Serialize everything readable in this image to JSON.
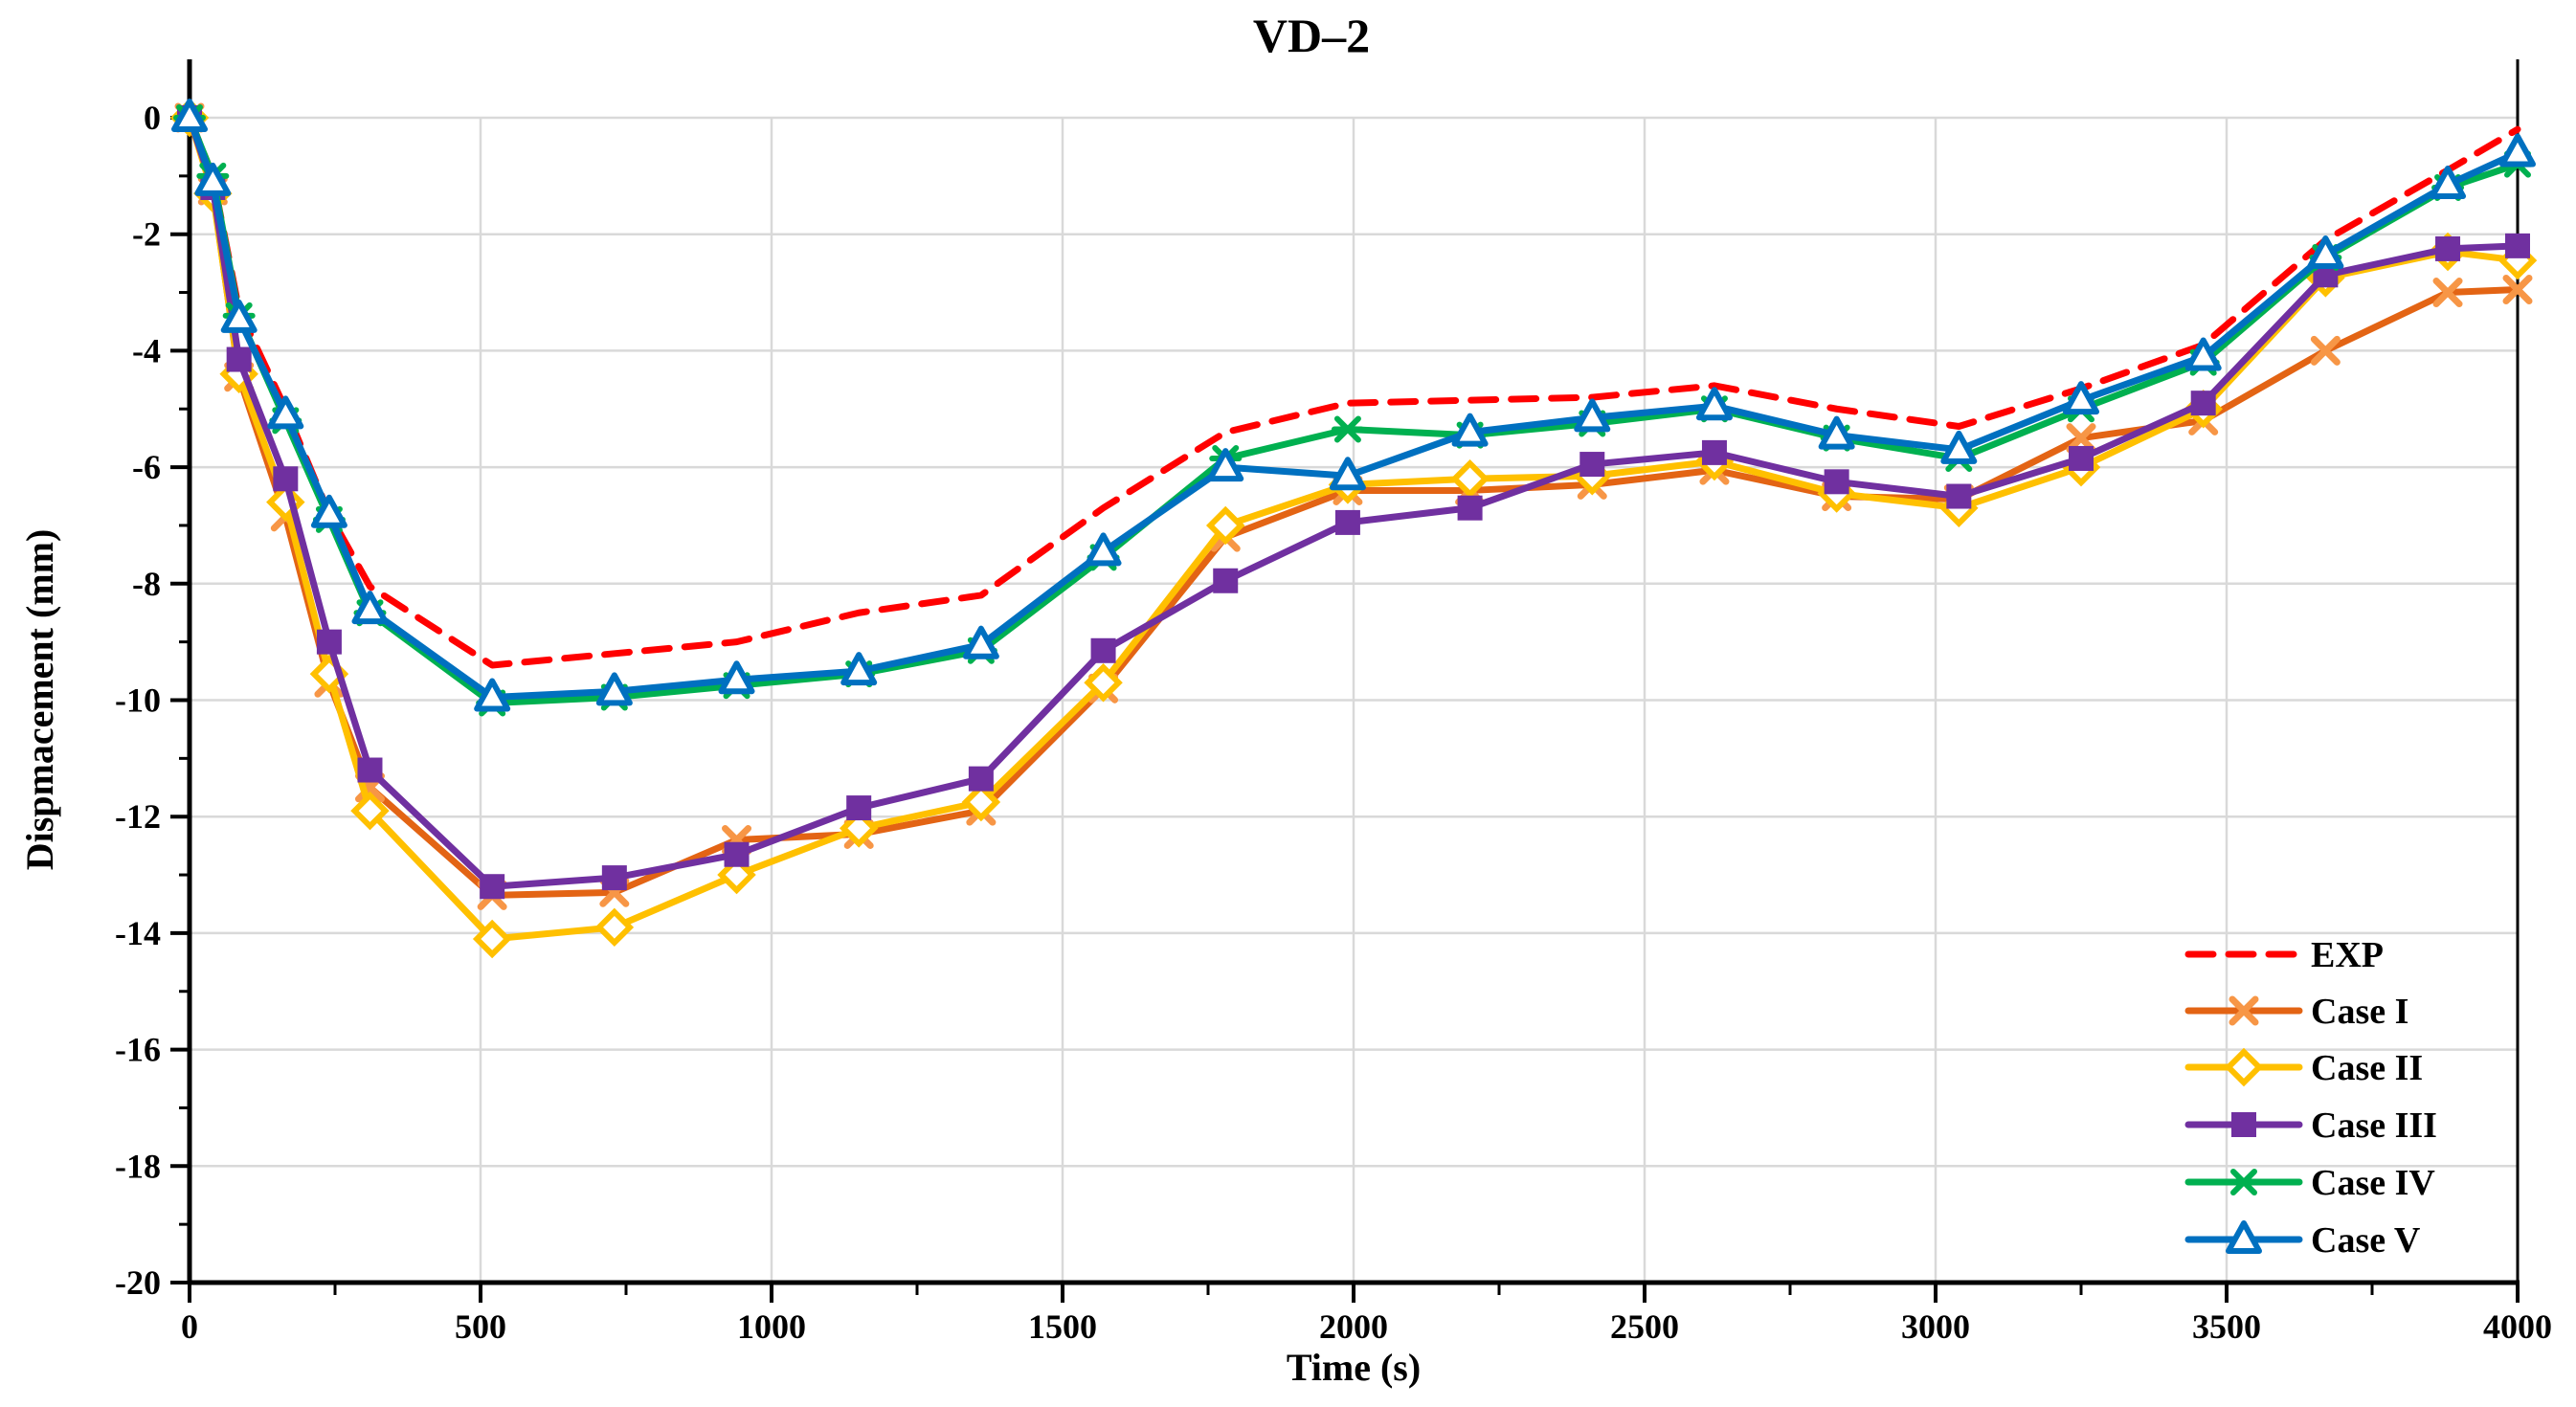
{
  "title": "VD–2",
  "chart_data": {
    "type": "line",
    "title": "VD–2",
    "xlabel": "Time (s)",
    "ylabel": "Dispmacement (mm)",
    "xlim": [
      0,
      4000
    ],
    "ylim": [
      -20,
      0
    ],
    "grid": true,
    "grid_color": "#D9D9D9",
    "legend_position": "lower right",
    "x_major_ticks": [
      0,
      500,
      1000,
      1500,
      2000,
      2500,
      3000,
      3500,
      4000
    ],
    "x_tick_labels": [
      "0",
      "500",
      "1000",
      "1500",
      "2000",
      "2500",
      "3000",
      "3500",
      "4000"
    ],
    "x_minor_step": 250,
    "y_major_ticks": [
      0,
      -2,
      -4,
      -6,
      -8,
      -10,
      -12,
      -14,
      -16,
      -18,
      -20
    ],
    "y_tick_labels": [
      "0",
      "-2",
      "-4",
      "-6",
      "-8",
      "-10",
      "-12",
      "-14",
      "-16",
      "-18",
      "-20"
    ],
    "y_minor_step": 1,
    "x": [
      0,
      40,
      85,
      165,
      240,
      310,
      520,
      730,
      940,
      1150,
      1360,
      1570,
      1780,
      1990,
      2200,
      2410,
      2620,
      2830,
      3040,
      3250,
      3460,
      3670,
      3880,
      4000
    ],
    "series": [
      {
        "name": "EXP",
        "color": "#FF0000",
        "dash": "26 16",
        "marker": "none",
        "marker_color": "#FF0000",
        "values": [
          0,
          -1.0,
          -3.3,
          -5.0,
          -6.8,
          -8.05,
          -9.4,
          -9.2,
          -9.0,
          -8.5,
          -8.2,
          -6.7,
          -5.4,
          -4.9,
          -4.85,
          -4.8,
          -4.6,
          -5.0,
          -5.3,
          -4.65,
          -3.9,
          -2.1,
          -0.9,
          -0.2
        ]
      },
      {
        "name": "Case I",
        "color": "#E36414",
        "dash": "",
        "marker": "x",
        "marker_color": "#F79646",
        "values": [
          0,
          -1.25,
          -4.45,
          -6.85,
          -9.7,
          -11.5,
          -13.35,
          -13.3,
          -12.4,
          -12.3,
          -11.9,
          -9.8,
          -7.2,
          -6.4,
          -6.4,
          -6.3,
          -6.05,
          -6.5,
          -6.55,
          -5.5,
          -5.2,
          -4.0,
          -3.0,
          -2.95
        ]
      },
      {
        "name": "Case II",
        "color": "#FFC000",
        "dash": "",
        "marker": "diamond",
        "marker_color": "#FFC000",
        "values": [
          0,
          -1.3,
          -4.4,
          -6.6,
          -9.55,
          -11.9,
          -14.1,
          -13.9,
          -13.0,
          -12.2,
          -11.75,
          -9.7,
          -7.0,
          -6.3,
          -6.2,
          -6.15,
          -5.9,
          -6.45,
          -6.7,
          -6.0,
          -5.0,
          -2.75,
          -2.3,
          -2.45
        ]
      },
      {
        "name": "Case III",
        "color": "#7030A0",
        "dash": "",
        "marker": "square",
        "marker_color": "#7030A0",
        "values": [
          0,
          -1.2,
          -4.15,
          -6.2,
          -9.0,
          -11.2,
          -13.2,
          -13.05,
          -12.65,
          -11.85,
          -11.35,
          -9.15,
          -7.95,
          -6.95,
          -6.7,
          -5.95,
          -5.75,
          -6.25,
          -6.5,
          -5.85,
          -4.9,
          -2.7,
          -2.25,
          -2.2
        ]
      },
      {
        "name": "Case IV",
        "color": "#00B050",
        "dash": "",
        "marker": "asterisk",
        "marker_color": "#00B050",
        "values": [
          0,
          -1.0,
          -3.4,
          -5.2,
          -6.9,
          -8.5,
          -10.05,
          -9.95,
          -9.75,
          -9.55,
          -9.15,
          -7.55,
          -5.85,
          -5.35,
          -5.45,
          -5.25,
          -5.0,
          -5.5,
          -5.85,
          -5.0,
          -4.2,
          -2.4,
          -1.2,
          -0.8
        ]
      },
      {
        "name": "Case V",
        "color": "#0070C0",
        "dash": "",
        "marker": "triangle",
        "marker_color": "#0070C0",
        "values": [
          0,
          -1.1,
          -3.45,
          -5.1,
          -6.8,
          -8.45,
          -9.95,
          -9.85,
          -9.65,
          -9.5,
          -9.05,
          -7.45,
          -6.0,
          -6.15,
          -5.4,
          -5.15,
          -4.95,
          -5.45,
          -5.7,
          -4.85,
          -4.1,
          -2.35,
          -1.15,
          -0.6
        ]
      }
    ]
  }
}
